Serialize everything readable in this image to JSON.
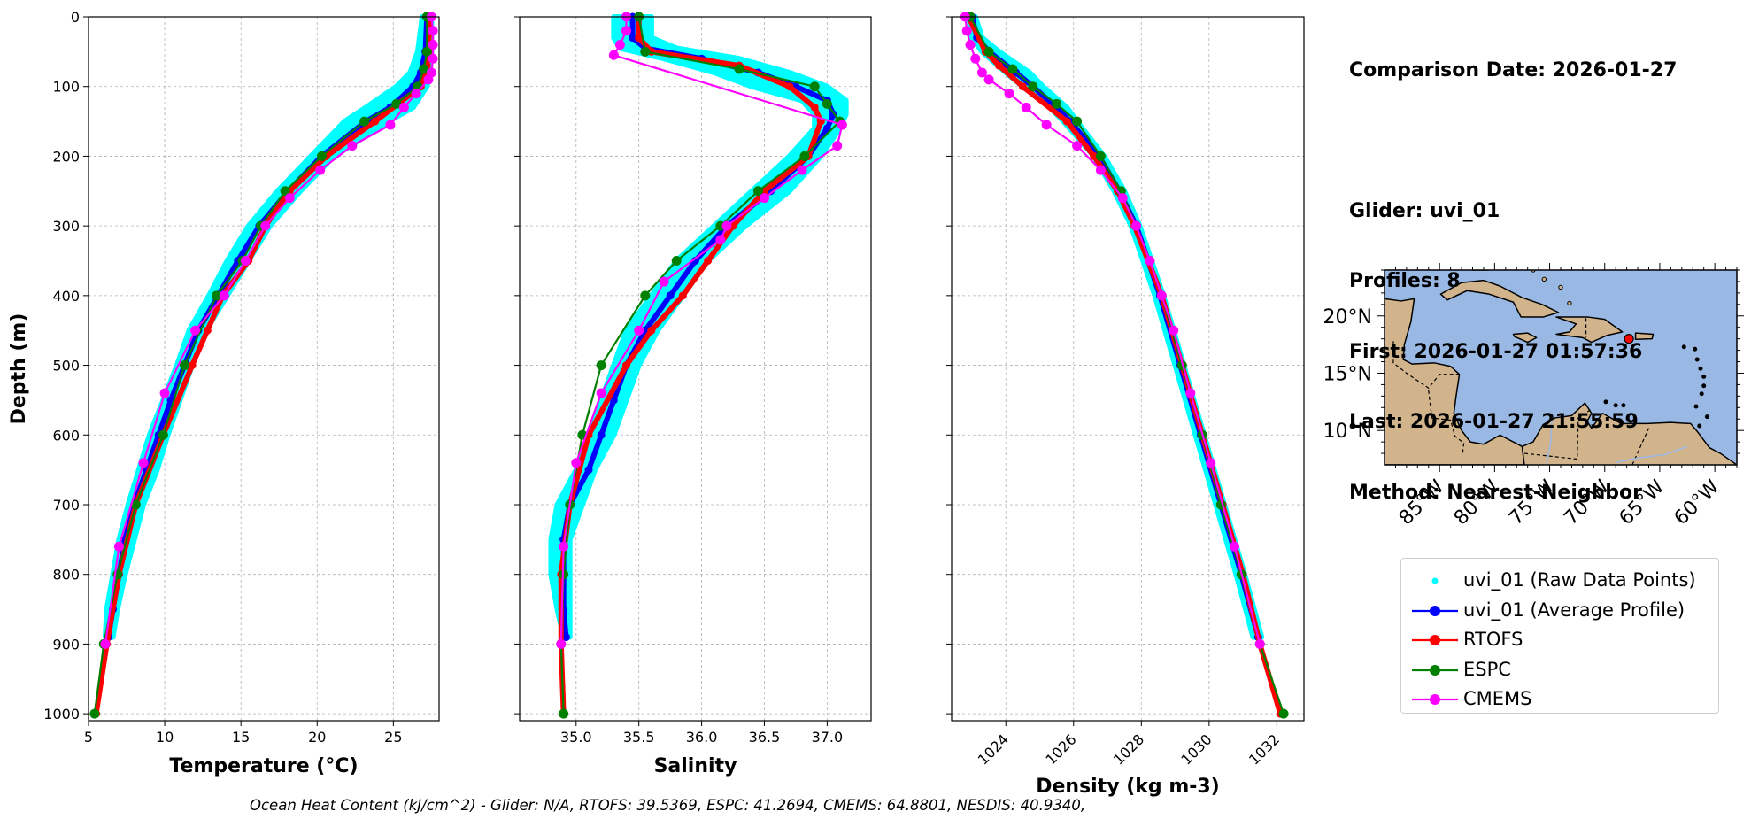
{
  "info": {
    "comparison_date": "Comparison Date: 2026-01-27",
    "glider": "Glider: uvi_01",
    "profiles": "Profiles: 8",
    "first": "First: 2026-01-27 01:57:36",
    "last": "Last: 2026-01-27 21:55:59",
    "method": "Method: Nearest-Neighbor"
  },
  "footer": {
    "text": "Ocean Heat Content (kJ/cm^2) - Glider: N/A,  RTOFS: 39.5369,  ESPC: 41.2694,  CMEMS: 64.8801,  NESDIS: 40.9340,"
  },
  "colors": {
    "raw": "#00ffff",
    "average": "#0000ff",
    "rtofs": "#ff0000",
    "espc": "#008000",
    "cmems": "#ff00ff",
    "ocean": "#9ab8e4",
    "land": "#d2b48c"
  },
  "legend": [
    {
      "key": "raw",
      "label": "uvi_01 (Raw Data Points)",
      "style": "points"
    },
    {
      "key": "average",
      "label": "uvi_01 (Average Profile)",
      "style": "line-marker"
    },
    {
      "key": "rtofs",
      "label": "RTOFS",
      "style": "line-marker"
    },
    {
      "key": "espc",
      "label": "ESPC",
      "style": "line-marker"
    },
    {
      "key": "cmems",
      "label": "CMEMS",
      "style": "line-marker"
    }
  ],
  "map": {
    "lon_range": [
      -90,
      -58
    ],
    "lat_range": [
      7,
      24
    ],
    "lon_ticks": [
      "85°W",
      "80°W",
      "75°W",
      "70°W",
      "65°W",
      "60°W"
    ],
    "lat_ticks": [
      "20°N",
      "15°N",
      "10°N"
    ],
    "glider_location": {
      "lon": -67.8,
      "lat": 18.0
    }
  },
  "chart_data": [
    {
      "type": "line",
      "xlabel": "Temperature (°C)",
      "ylabel": "Depth (m)",
      "xlim": [
        5,
        28
      ],
      "ylim": [
        1010,
        0
      ],
      "xticks": [
        5,
        10,
        15,
        20,
        25
      ],
      "yticks": [
        0,
        100,
        200,
        300,
        400,
        500,
        600,
        700,
        800,
        900,
        1000
      ],
      "grid": true,
      "raw_band": {
        "depth": [
          0,
          50,
          80,
          100,
          130,
          150,
          200,
          250,
          300,
          350,
          400,
          450,
          500,
          550,
          600,
          650,
          700,
          750,
          800,
          850,
          890
        ],
        "min": [
          26.9,
          26.6,
          26.1,
          25.2,
          23.2,
          21.8,
          19.6,
          17.4,
          15.5,
          14.1,
          12.9,
          11.6,
          10.8,
          9.9,
          9.0,
          8.3,
          7.6,
          7.0,
          6.6,
          6.2,
          6.1
        ],
        "max": [
          27.5,
          27.5,
          27.4,
          27.2,
          26.3,
          24.7,
          21.1,
          18.9,
          16.9,
          15.5,
          14.1,
          12.7,
          11.8,
          11.0,
          10.2,
          9.5,
          8.6,
          8.0,
          7.4,
          6.9,
          6.6
        ]
      },
      "series": [
        {
          "name": "uvi_01 (Average Profile)",
          "key": "average",
          "depth": [
            0,
            50,
            80,
            100,
            130,
            150,
            200,
            250,
            300,
            350,
            400,
            450,
            500,
            550,
            600,
            650,
            700,
            750,
            800,
            850,
            890
          ],
          "values": [
            27.2,
            27.1,
            26.8,
            26.3,
            24.8,
            23.2,
            20.3,
            18.1,
            16.2,
            14.8,
            13.5,
            12.2,
            11.3,
            10.4,
            9.6,
            8.8,
            8.0,
            7.4,
            7.0,
            6.6,
            6.3
          ]
        },
        {
          "name": "RTOFS",
          "key": "rtofs",
          "depth": [
            0,
            50,
            70,
            100,
            150,
            200,
            250,
            300,
            350,
            400,
            450,
            500,
            600,
            700,
            800,
            900,
            1000
          ],
          "values": [
            27.4,
            27.3,
            27.2,
            26.8,
            23.8,
            20.6,
            18.2,
            16.6,
            15.5,
            13.8,
            12.8,
            11.8,
            9.9,
            8.1,
            7.0,
            6.2,
            5.5
          ]
        },
        {
          "name": "ESPC",
          "key": "espc",
          "depth": [
            0,
            50,
            75,
            100,
            125,
            150,
            200,
            250,
            300,
            350,
            400,
            500,
            600,
            700,
            800,
            900,
            1000
          ],
          "values": [
            27.2,
            27.2,
            27.0,
            26.6,
            25.2,
            23.1,
            20.3,
            17.9,
            16.3,
            15.1,
            13.4,
            11.3,
            9.9,
            8.1,
            6.9,
            6.0,
            5.4
          ]
        },
        {
          "name": "CMEMS",
          "key": "cmems",
          "depth": [
            0,
            20,
            40,
            60,
            80,
            90,
            110,
            130,
            155,
            185,
            220,
            260,
            300,
            350,
            400,
            450,
            540,
            640,
            760,
            900
          ],
          "values": [
            27.5,
            27.6,
            27.6,
            27.6,
            27.5,
            27.3,
            26.5,
            25.7,
            24.8,
            22.3,
            20.2,
            18.2,
            16.6,
            15.3,
            13.9,
            12.0,
            10.0,
            8.6,
            7.0,
            6.1
          ]
        }
      ]
    },
    {
      "type": "line",
      "xlabel": "Salinity",
      "xlim": [
        34.55,
        37.35
      ],
      "ylim": [
        1010,
        0
      ],
      "xticks": [
        35.0,
        35.5,
        36.0,
        36.5,
        37.0
      ],
      "yticks": [
        0,
        100,
        200,
        300,
        400,
        500,
        600,
        700,
        800,
        900,
        1000
      ],
      "grid": true,
      "raw_band": {
        "depth": [
          0,
          30,
          45,
          60,
          80,
          100,
          120,
          140,
          160,
          200,
          250,
          300,
          350,
          400,
          450,
          500,
          550,
          600,
          650,
          700,
          750,
          800,
          850,
          890
        ],
        "min": [
          35.3,
          35.3,
          35.35,
          35.7,
          36.1,
          36.4,
          36.8,
          36.9,
          36.9,
          36.7,
          36.4,
          36.1,
          35.8,
          35.6,
          35.4,
          35.3,
          35.2,
          35.1,
          35.0,
          34.85,
          34.8,
          34.8,
          34.85,
          34.9
        ],
        "max": [
          35.6,
          35.6,
          35.8,
          36.3,
          36.7,
          37.0,
          37.15,
          37.15,
          37.1,
          36.95,
          36.7,
          36.35,
          36.05,
          35.85,
          35.65,
          35.5,
          35.4,
          35.3,
          35.15,
          35.05,
          34.95,
          34.95,
          34.95,
          34.95
        ]
      },
      "series": [
        {
          "name": "uvi_01 (Average Profile)",
          "key": "average",
          "depth": [
            0,
            30,
            45,
            60,
            80,
            100,
            120,
            140,
            160,
            200,
            250,
            300,
            350,
            400,
            450,
            500,
            550,
            600,
            650,
            700,
            750,
            800,
            850,
            890
          ],
          "values": [
            35.45,
            35.45,
            35.55,
            36.0,
            36.45,
            36.75,
            37.0,
            37.05,
            37.0,
            36.85,
            36.55,
            36.2,
            35.95,
            35.75,
            35.55,
            35.4,
            35.3,
            35.2,
            35.1,
            34.95,
            34.9,
            34.9,
            34.9,
            34.92
          ]
        },
        {
          "name": "RTOFS",
          "key": "rtofs",
          "depth": [
            0,
            30,
            50,
            70,
            100,
            130,
            150,
            200,
            250,
            300,
            350,
            400,
            450,
            500,
            600,
            700,
            800,
            900,
            1000
          ],
          "values": [
            35.5,
            35.5,
            35.6,
            36.3,
            36.7,
            36.9,
            36.95,
            36.85,
            36.5,
            36.25,
            36.05,
            35.85,
            35.6,
            35.4,
            35.1,
            34.95,
            34.88,
            34.88,
            34.9
          ]
        },
        {
          "name": "ESPC",
          "key": "espc",
          "depth": [
            0,
            50,
            75,
            100,
            125,
            150,
            200,
            250,
            300,
            350,
            400,
            500,
            600,
            700,
            800,
            900,
            1000
          ],
          "values": [
            35.5,
            35.55,
            36.3,
            36.9,
            37.0,
            37.1,
            36.82,
            36.45,
            36.15,
            35.8,
            35.55,
            35.2,
            35.05,
            34.95,
            34.9,
            34.88,
            34.9
          ]
        },
        {
          "name": "CMEMS",
          "key": "cmems",
          "depth": [
            0,
            20,
            40,
            55,
            155,
            185,
            220,
            260,
            300,
            320,
            380,
            450,
            540,
            640,
            760,
            900
          ],
          "values": [
            35.4,
            35.4,
            35.35,
            35.3,
            37.12,
            37.08,
            36.8,
            36.5,
            36.2,
            36.15,
            35.7,
            35.5,
            35.2,
            35.0,
            34.9,
            34.88
          ]
        }
      ]
    },
    {
      "type": "line",
      "xlabel": "Density (kg m-3)",
      "xlim": [
        1022.4,
        1032.8
      ],
      "ylim": [
        1010,
        0
      ],
      "xticks": [
        1024,
        1026,
        1028,
        1030,
        1032
      ],
      "yticks": [
        0,
        100,
        200,
        300,
        400,
        500,
        600,
        700,
        800,
        900,
        1000
      ],
      "grid": true,
      "raw_band": {
        "depth": [
          0,
          30,
          50,
          80,
          100,
          130,
          150,
          200,
          250,
          300,
          400,
          500,
          600,
          700,
          800,
          890
        ],
        "min": [
          1022.9,
          1023.0,
          1023.3,
          1024.0,
          1024.5,
          1025.3,
          1025.7,
          1026.6,
          1027.2,
          1027.7,
          1028.4,
          1029.0,
          1029.6,
          1030.2,
          1030.8,
          1031.3
        ],
        "max": [
          1023.1,
          1023.3,
          1023.8,
          1024.7,
          1025.1,
          1025.8,
          1026.1,
          1026.9,
          1027.5,
          1027.95,
          1028.65,
          1029.25,
          1029.85,
          1030.45,
          1031.05,
          1031.55
        ]
      },
      "series": [
        {
          "name": "uvi_01 (Average Profile)",
          "key": "average",
          "depth": [
            0,
            30,
            50,
            80,
            100,
            130,
            150,
            200,
            250,
            300,
            400,
            500,
            600,
            700,
            800,
            890
          ],
          "values": [
            1023.0,
            1023.15,
            1023.5,
            1024.3,
            1024.8,
            1025.5,
            1025.9,
            1026.75,
            1027.35,
            1027.85,
            1028.55,
            1029.15,
            1029.75,
            1030.35,
            1030.95,
            1031.45
          ]
        },
        {
          "name": "RTOFS",
          "key": "rtofs",
          "depth": [
            0,
            50,
            70,
            100,
            150,
            200,
            250,
            300,
            400,
            500,
            600,
            700,
            800,
            900,
            1000
          ],
          "values": [
            1022.9,
            1023.4,
            1023.8,
            1024.5,
            1025.8,
            1026.6,
            1027.3,
            1027.8,
            1028.6,
            1029.2,
            1029.8,
            1030.4,
            1031.0,
            1031.5,
            1032.1
          ]
        },
        {
          "name": "ESPC",
          "key": "espc",
          "depth": [
            0,
            50,
            75,
            100,
            125,
            150,
            200,
            250,
            300,
            350,
            400,
            500,
            600,
            700,
            800,
            900,
            1000
          ],
          "values": [
            1022.95,
            1023.5,
            1024.2,
            1024.8,
            1025.5,
            1026.1,
            1026.8,
            1027.4,
            1027.85,
            1028.25,
            1028.6,
            1029.2,
            1029.8,
            1030.35,
            1030.95,
            1031.5,
            1032.2
          ]
        },
        {
          "name": "CMEMS",
          "key": "cmems",
          "depth": [
            0,
            20,
            40,
            60,
            80,
            90,
            110,
            130,
            155,
            185,
            220,
            260,
            300,
            350,
            400,
            450,
            540,
            640,
            760,
            900
          ],
          "values": [
            1022.8,
            1022.85,
            1022.95,
            1023.1,
            1023.3,
            1023.5,
            1024.1,
            1024.6,
            1025.2,
            1026.1,
            1026.8,
            1027.45,
            1027.85,
            1028.25,
            1028.6,
            1028.95,
            1029.45,
            1030.05,
            1030.75,
            1031.5
          ]
        }
      ]
    }
  ]
}
